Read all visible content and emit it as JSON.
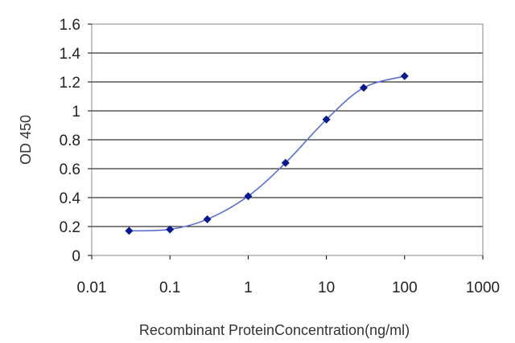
{
  "chart_data": {
    "type": "line",
    "title": "",
    "xlabel": "Recombinant ProteinConcentration(ng/ml)",
    "ylabel": "OD 450",
    "x_scale": "log",
    "xlim": [
      0.01,
      1000
    ],
    "ylim": [
      0,
      1.6
    ],
    "grid": "horizontal",
    "x_ticks": [
      "0.01",
      "0.1",
      "1",
      "10",
      "100",
      "1000"
    ],
    "y_ticks": [
      "0",
      "0.2",
      "0.4",
      "0.6",
      "0.8",
      "1",
      "1.2",
      "1.4",
      "1.6"
    ],
    "series": [
      {
        "x": [
          0.03,
          0.1,
          0.3,
          1,
          3,
          10,
          30,
          100
        ],
        "y": [
          0.17,
          0.18,
          0.25,
          0.41,
          0.64,
          0.94,
          1.16,
          1.24
        ]
      }
    ],
    "colors": {
      "series": "#0a1a8c",
      "line": "#5a6fd0",
      "grid": "#000000",
      "frame": "#888888"
    }
  }
}
